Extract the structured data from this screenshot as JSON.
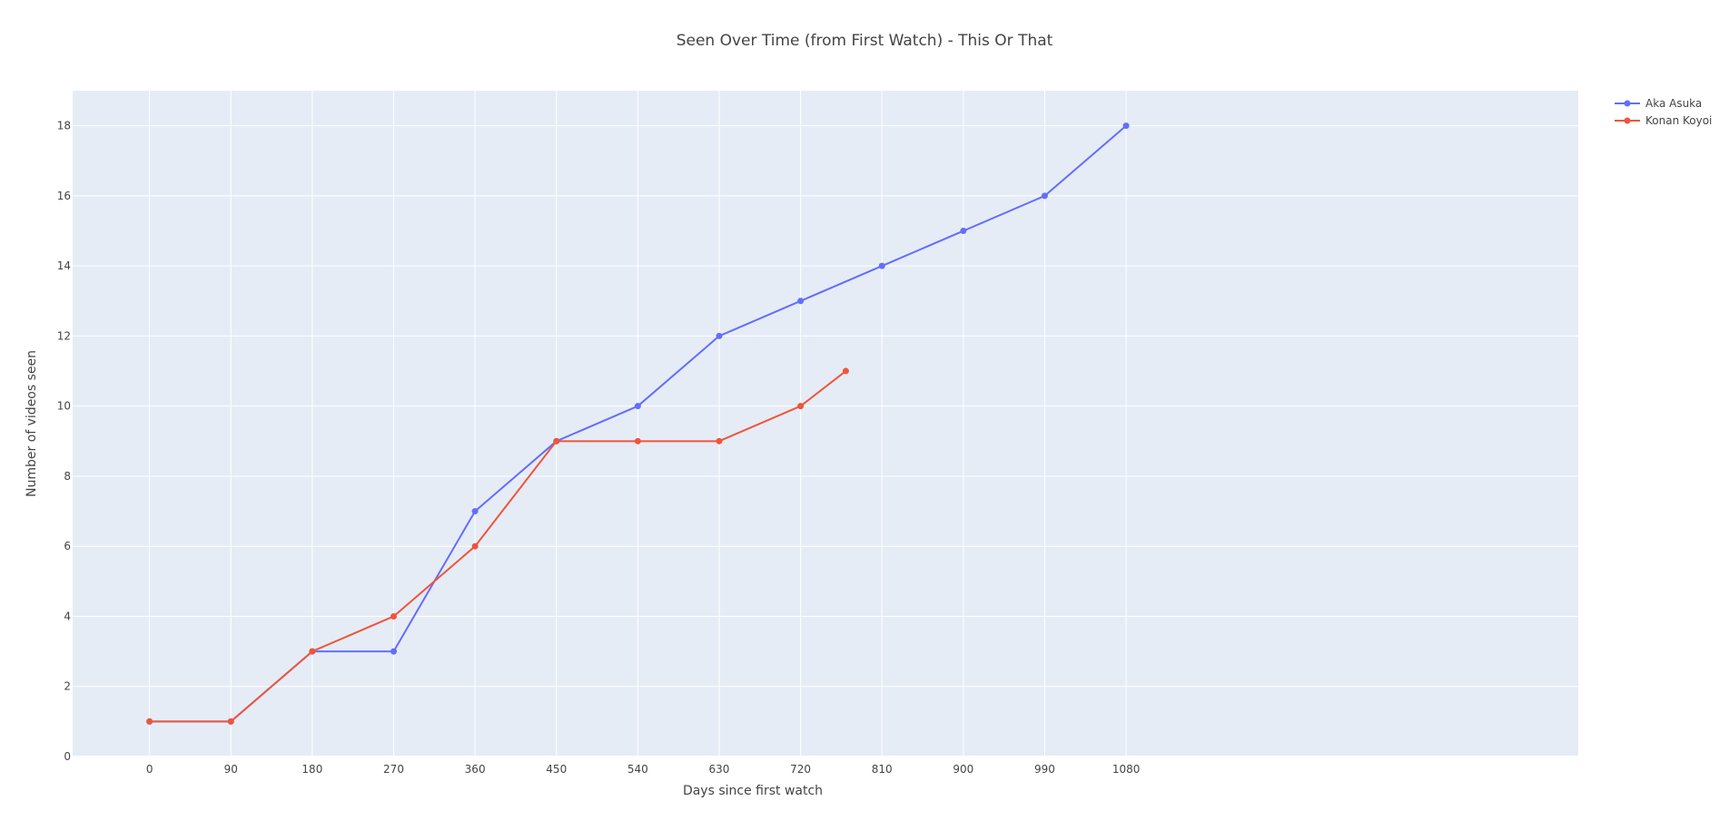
{
  "chart_data": {
    "type": "line",
    "title": "Seen Over Time (from First Watch) - This Or That",
    "xlabel": "Days since first watch",
    "ylabel": "Number of videos seen",
    "xlim": [
      -85,
      1580
    ],
    "ylim": [
      0,
      19
    ],
    "xticks": [
      0,
      90,
      180,
      270,
      360,
      450,
      540,
      630,
      720,
      810,
      900,
      990,
      1080
    ],
    "yticks": [
      0,
      2,
      4,
      6,
      8,
      10,
      12,
      14,
      16,
      18
    ],
    "grid": true,
    "legend_position": "top-right",
    "series": [
      {
        "name": "Aka Asuka",
        "color": "#636efa",
        "x": [
          0,
          90,
          180,
          270,
          360,
          450,
          540,
          630,
          720,
          810,
          900,
          990,
          1080
        ],
        "y": [
          1,
          1,
          3,
          3,
          7,
          9,
          10,
          12,
          13,
          14,
          15,
          16,
          18
        ]
      },
      {
        "name": "Konan Koyoi",
        "color": "#ef553b",
        "x": [
          0,
          90,
          180,
          270,
          360,
          450,
          540,
          630,
          720,
          770
        ],
        "y": [
          1,
          1,
          3,
          4,
          6,
          9,
          9,
          9,
          10,
          11
        ]
      }
    ],
    "colors": {
      "plot_background": "#e5ecf6",
      "grid": "#ffffff",
      "text": "#444444"
    }
  }
}
